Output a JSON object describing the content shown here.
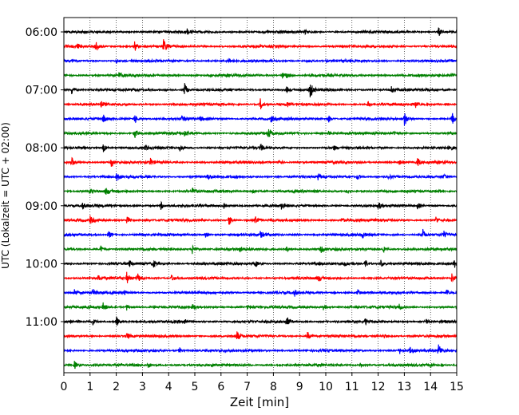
{
  "chart_data": {
    "type": "line",
    "subtype": "helicorder",
    "xlabel": "Zeit  [min]",
    "ylabel": "UTC (Lokalzeit = UTC + 02:00)",
    "xlim": [
      0,
      15
    ],
    "x_ticks": [
      "0",
      "1",
      "2",
      "3",
      "4",
      "5",
      "6",
      "7",
      "8",
      "9",
      "10",
      "11",
      "12",
      "13",
      "14",
      "15"
    ],
    "grid": "vertical dotted",
    "row_interval_min": 15,
    "row_start_times": [
      "06:00",
      "06:15",
      "06:30",
      "06:45",
      "07:00",
      "07:15",
      "07:30",
      "07:45",
      "08:00",
      "08:15",
      "08:30",
      "08:45",
      "09:00",
      "09:15",
      "09:30",
      "09:45",
      "10:00",
      "10:15",
      "10:30",
      "10:45",
      "11:00",
      "11:15",
      "11:30",
      "11:45"
    ],
    "y_tick_labels": [
      "06:00",
      "07:00",
      "08:00",
      "09:00",
      "10:00",
      "11:00"
    ],
    "trace_colors": [
      "#000000",
      "#ff0000",
      "#0000ff",
      "#008000"
    ],
    "events": [
      [
        [
          4.7,
          0.6
        ],
        [
          14.3,
          0.9
        ],
        [
          9.2,
          0.4
        ]
      ],
      [
        [
          1.2,
          1.2
        ],
        [
          2.7,
          1.0
        ],
        [
          3.8,
          1.5
        ],
        [
          0.5,
          0.4
        ]
      ],
      [
        [
          2.0,
          0.4
        ],
        [
          6.3,
          0.4
        ],
        [
          9.3,
          0.3
        ]
      ],
      [
        [
          2.1,
          0.6
        ],
        [
          8.3,
          0.8
        ],
        [
          8.5,
          0.5
        ],
        [
          14.8,
          0.5
        ]
      ],
      [
        [
          0.3,
          0.8
        ],
        [
          4.6,
          1.4
        ],
        [
          9.4,
          1.5
        ],
        [
          12.5,
          0.6
        ],
        [
          8.5,
          0.6
        ]
      ],
      [
        [
          1.4,
          0.7
        ],
        [
          7.5,
          1.1
        ],
        [
          8.5,
          0.6
        ],
        [
          13.4,
          0.7
        ],
        [
          11.6,
          0.6
        ]
      ],
      [
        [
          1.5,
          0.7
        ],
        [
          2.7,
          1.0
        ],
        [
          4.5,
          0.5
        ],
        [
          7.9,
          0.6
        ],
        [
          13.0,
          1.5
        ],
        [
          14.8,
          1.5
        ],
        [
          5.2,
          0.4
        ],
        [
          10.1,
          0.8
        ]
      ],
      [
        [
          2.7,
          1.0
        ],
        [
          4.6,
          0.5
        ],
        [
          7.8,
          1.0
        ],
        [
          12.6,
          0.5
        ],
        [
          10.1,
          0.5
        ]
      ],
      [
        [
          1.5,
          0.8
        ],
        [
          3.1,
          0.6
        ],
        [
          4.4,
          0.7
        ],
        [
          7.5,
          0.7
        ],
        [
          14.7,
          0.6
        ],
        [
          10.3,
          0.4
        ]
      ],
      [
        [
          0.3,
          0.8
        ],
        [
          1.8,
          1.0
        ],
        [
          3.3,
          0.7
        ],
        [
          8.2,
          0.8
        ],
        [
          12.8,
          0.5
        ],
        [
          13.5,
          0.7
        ]
      ],
      [
        [
          2.0,
          1.1
        ],
        [
          5.5,
          0.6
        ],
        [
          11.2,
          0.7
        ],
        [
          12.4,
          0.6
        ],
        [
          14.5,
          0.6
        ],
        [
          9.7,
          0.5
        ]
      ],
      [
        [
          1.0,
          0.6
        ],
        [
          1.6,
          0.8
        ],
        [
          4.9,
          0.7
        ],
        [
          7.2,
          0.5
        ],
        [
          10.8,
          0.5
        ],
        [
          14.3,
          0.5
        ]
      ],
      [
        [
          0.7,
          0.6
        ],
        [
          3.7,
          0.7
        ],
        [
          6.1,
          0.7
        ],
        [
          8.3,
          0.6
        ],
        [
          12.0,
          0.7
        ],
        [
          13.5,
          0.6
        ]
      ],
      [
        [
          1.0,
          0.7
        ],
        [
          2.4,
          0.7
        ],
        [
          6.3,
          1.1
        ],
        [
          7.3,
          1.1
        ],
        [
          10.6,
          0.5
        ],
        [
          14.2,
          0.7
        ]
      ],
      [
        [
          1.7,
          0.8
        ],
        [
          5.4,
          0.7
        ],
        [
          7.5,
          0.6
        ],
        [
          11.4,
          0.6
        ],
        [
          13.7,
          1.0
        ],
        [
          14.5,
          0.6
        ]
      ],
      [
        [
          1.4,
          0.7
        ],
        [
          4.9,
          0.9
        ],
        [
          6.7,
          0.6
        ],
        [
          8.5,
          0.5
        ],
        [
          9.8,
          0.7
        ],
        [
          12.2,
          0.5
        ]
      ],
      [
        [
          2.5,
          0.6
        ],
        [
          3.4,
          0.8
        ],
        [
          7.3,
          0.6
        ],
        [
          10.7,
          0.6
        ],
        [
          11.5,
          0.9
        ],
        [
          12.1,
          0.8
        ],
        [
          14.9,
          0.9
        ]
      ],
      [
        [
          1.3,
          0.6
        ],
        [
          2.4,
          1.0
        ],
        [
          2.8,
          1.0
        ],
        [
          4.1,
          0.8
        ],
        [
          9.7,
          0.7
        ],
        [
          14.8,
          1.0
        ]
      ],
      [
        [
          0.4,
          0.7
        ],
        [
          1.1,
          0.6
        ],
        [
          2.3,
          0.5
        ],
        [
          8.8,
          0.6
        ],
        [
          11.2,
          0.7
        ],
        [
          14.6,
          0.6
        ]
      ],
      [
        [
          1.5,
          0.7
        ],
        [
          2.4,
          0.6
        ],
        [
          4.9,
          0.6
        ],
        [
          7.0,
          0.5
        ],
        [
          9.9,
          0.7
        ],
        [
          12.8,
          0.5
        ]
      ],
      [
        [
          1.1,
          0.5
        ],
        [
          2.0,
          1.0
        ],
        [
          4.6,
          0.8
        ],
        [
          8.5,
          1.1
        ],
        [
          11.5,
          0.5
        ],
        [
          13.8,
          0.6
        ]
      ],
      [
        [
          2.4,
          0.7
        ],
        [
          6.6,
          1.0
        ],
        [
          9.3,
          0.8
        ],
        [
          12.2,
          0.5
        ]
      ],
      [
        [
          4.4,
          0.7
        ],
        [
          12.8,
          0.7
        ],
        [
          13.2,
          0.6
        ],
        [
          14.3,
          1.2
        ]
      ],
      [
        [
          0.4,
          0.8
        ],
        [
          3.2,
          0.6
        ],
        [
          11.3,
          0.5
        ],
        [
          14.0,
          0.4
        ]
      ]
    ]
  }
}
